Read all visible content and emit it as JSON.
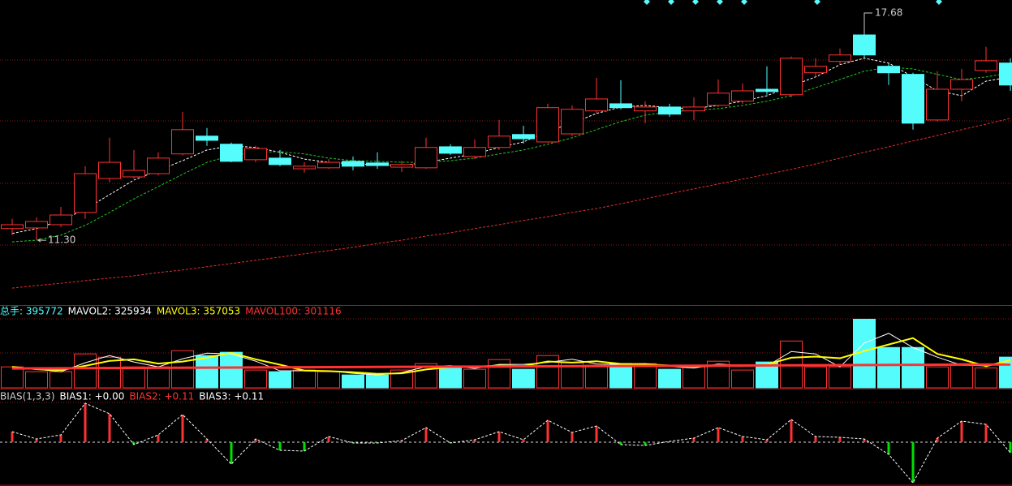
{
  "chart_data": [
    {
      "type": "candlestick",
      "open": [
        11.66,
        11.68,
        11.78,
        12.16,
        13.21,
        13.26,
        13.36,
        13.97,
        14.52,
        14.27,
        13.79,
        13.84,
        13.51,
        13.54,
        13.74,
        13.69,
        13.56,
        13.54,
        14.19,
        13.89,
        14.17,
        14.57,
        14.34,
        14.59,
        15.3,
        15.52,
        15.3,
        15.42,
        15.3,
        15.47,
        15.6,
        15.97,
        15.8,
        16.48,
        16.83,
        17.65,
        16.68,
        16.43,
        15.02,
        15.97,
        16.55,
        16.78
      ],
      "high": [
        11.96,
        12.01,
        12.33,
        13.59,
        14.47,
        14.09,
        14.02,
        15.27,
        14.77,
        14.32,
        14.22,
        14.09,
        13.71,
        13.81,
        13.89,
        14.02,
        13.76,
        14.47,
        14.27,
        14.42,
        15.02,
        14.84,
        15.52,
        15.47,
        16.32,
        16.25,
        15.6,
        15.52,
        15.72,
        16.27,
        16.15,
        16.68,
        16.98,
        16.93,
        17.23,
        17.68,
        16.78,
        16.48,
        16.53,
        16.6,
        17.28,
        16.93
      ],
      "low": [
        11.46,
        11.3,
        11.71,
        11.96,
        13.09,
        13.21,
        13.31,
        13.92,
        14.22,
        13.71,
        13.71,
        13.59,
        13.39,
        13.51,
        13.46,
        13.51,
        13.41,
        13.51,
        13.94,
        13.81,
        14.09,
        14.29,
        14.32,
        14.52,
        15.22,
        15.35,
        14.92,
        15.12,
        15.02,
        15.42,
        15.52,
        15.8,
        15.72,
        16.35,
        16.73,
        16.93,
        16.1,
        14.72,
        14.97,
        15.6,
        16.48,
        15.92
      ],
      "close": [
        11.78,
        11.88,
        12.08,
        13.36,
        13.71,
        13.46,
        13.84,
        14.72,
        14.39,
        13.74,
        14.14,
        13.64,
        13.59,
        13.71,
        13.59,
        13.61,
        13.64,
        14.17,
        13.99,
        14.17,
        14.52,
        14.44,
        15.4,
        15.35,
        15.67,
        15.4,
        15.42,
        15.2,
        15.42,
        15.85,
        15.92,
        15.9,
        16.93,
        16.68,
        17.03,
        17.03,
        16.48,
        14.92,
        15.97,
        16.27,
        16.85,
        16.1
      ],
      "up_color": "#ff3232",
      "down_color": "#54fcfc",
      "ylim": [
        9.32,
        18.73
      ],
      "series": [
        {
          "color": "#ffffff",
          "values": [
            11.51,
            11.66,
            11.91,
            12.26,
            12.71,
            13.16,
            13.46,
            13.76,
            14.09,
            14.22,
            14.17,
            14.02,
            13.81,
            13.71,
            13.66,
            13.64,
            13.61,
            13.71,
            13.84,
            13.97,
            14.17,
            14.34,
            14.67,
            14.92,
            15.22,
            15.42,
            15.47,
            15.4,
            15.37,
            15.47,
            15.6,
            15.77,
            16.07,
            16.35,
            16.73,
            16.93,
            16.78,
            16.35,
            15.92,
            15.77,
            16.22,
            16.35
          ]
        },
        {
          "color": "#22c822",
          "values": [
            11.25,
            11.3,
            11.46,
            11.76,
            12.16,
            12.58,
            12.96,
            13.34,
            13.71,
            13.92,
            14.02,
            14.04,
            13.97,
            13.84,
            13.76,
            13.74,
            13.71,
            13.71,
            13.76,
            13.84,
            13.97,
            14.09,
            14.27,
            14.47,
            14.72,
            14.97,
            15.17,
            15.27,
            15.32,
            15.37,
            15.47,
            15.6,
            15.77,
            16.02,
            16.27,
            16.53,
            16.65,
            16.6,
            16.43,
            16.27,
            16.35,
            16.48
          ]
        },
        {
          "color": "#e03030",
          "values": [
            9.82,
            9.9,
            9.97,
            10.05,
            10.13,
            10.2,
            10.3,
            10.38,
            10.48,
            10.58,
            10.68,
            10.78,
            10.88,
            10.98,
            11.08,
            11.2,
            11.3,
            11.43,
            11.53,
            11.66,
            11.78,
            11.91,
            12.03,
            12.16,
            12.28,
            12.43,
            12.58,
            12.74,
            12.89,
            13.04,
            13.19,
            13.34,
            13.49,
            13.66,
            13.84,
            14.02,
            14.19,
            14.37,
            14.54,
            14.72,
            14.89,
            15.07
          ]
        }
      ],
      "max_label": "17.68",
      "min_label": "11.30"
    },
    {
      "type": "bar",
      "header": [
        {
          "text": "总手: 395772",
          "color": "#54fcfc"
        },
        {
          "text": "MAVOL2: 325934",
          "color": "#ffffff"
        },
        {
          "text": "MAVOL3: 357053",
          "color": "#ffff00"
        },
        {
          "text": "MAVOL100: 301116",
          "color": "#ff3232"
        }
      ],
      "values": [
        270000,
        208000,
        208000,
        437000,
        395000,
        270000,
        270000,
        478000,
        416000,
        458000,
        229000,
        208000,
        229000,
        208000,
        166000,
        166000,
        229000,
        312000,
        260000,
        239000,
        364000,
        239000,
        416000,
        322000,
        291000,
        312000,
        312000,
        239000,
        270000,
        343000,
        229000,
        333000,
        603000,
        270000,
        270000,
        884000,
        520000,
        520000,
        270000,
        312000,
        256000,
        395772
      ],
      "ylim": [
        0,
        920000
      ],
      "series": [
        {
          "color": "#ffffff",
          "values": [
            270000,
            239000,
            208000,
            323000,
            416000,
            333000,
            270000,
            374000,
            447000,
            437000,
            344000,
            219000,
            219000,
            219000,
            187000,
            166000,
            198000,
            271000,
            286000,
            250000,
            302000,
            302000,
            328000,
            369000,
            307000,
            302000,
            312000,
            276000,
            255000,
            307000,
            286000,
            281000,
            468000,
            437000,
            270000,
            577000,
            702000,
            520000,
            395000,
            291000,
            284000,
            325934
          ]
        },
        {
          "color": "#ffff00",
          "values": [
            270000,
            239000,
            229000,
            284000,
            347000,
            367000,
            312000,
            339000,
            388000,
            451000,
            368000,
            298000,
            222000,
            215000,
            201000,
            180000,
            187000,
            236000,
            267000,
            270000,
            288000,
            281000,
            340000,
            326000,
            343000,
            308000,
            305000,
            288000,
            274000,
            284000,
            281000,
            302000,
            388000,
            402000,
            381000,
            475000,
            558000,
            641000,
            437000,
            367000,
            279000,
            357053
          ]
        },
        {
          "color": "#ff3232",
          "values": [
            250000,
            251250,
            252500,
            253750,
            255000,
            256250,
            257500,
            258750,
            260000,
            261250,
            262500,
            263750,
            265000,
            266250,
            267500,
            268750,
            270000,
            271250,
            272500,
            273750,
            275000,
            276250,
            277500,
            278750,
            280000,
            281250,
            282500,
            283750,
            285000,
            286250,
            287500,
            288750,
            290000,
            291250,
            292500,
            293750,
            295000,
            296250,
            297500,
            298750,
            300000,
            301116
          ]
        }
      ]
    },
    {
      "type": "bias",
      "header": [
        {
          "text": "BIAS(1,3,3)",
          "color": "#cccccc"
        },
        {
          "text": "BIAS1: +0.00",
          "color": "#ffffff"
        },
        {
          "text": "BIAS2: +0.11",
          "color": "#ff3232"
        },
        {
          "text": "BIAS3: +0.11",
          "color": "#ffffff"
        }
      ],
      "values": [
        1.3,
        0.4,
        0.9,
        4.8,
        3.5,
        -0.3,
        0.9,
        3.4,
        0.4,
        -2.7,
        0.4,
        -1.0,
        -1.1,
        0.7,
        -0.1,
        -0.1,
        0.2,
        1.8,
        -0.1,
        0.3,
        1.3,
        0.3,
        2.7,
        1.2,
        2.0,
        -0.3,
        -0.4,
        0.1,
        0.5,
        1.8,
        0.7,
        0.3,
        2.8,
        0.7,
        0.6,
        0.4,
        -1.5,
        -5.0,
        0.5,
        2.6,
        2.2,
        -1.3
      ],
      "ylim": [
        -5.3,
        6.0
      ],
      "up_color": "#ff3232",
      "down_color": "#00e000",
      "line_color": "#ffffff"
    }
  ]
}
